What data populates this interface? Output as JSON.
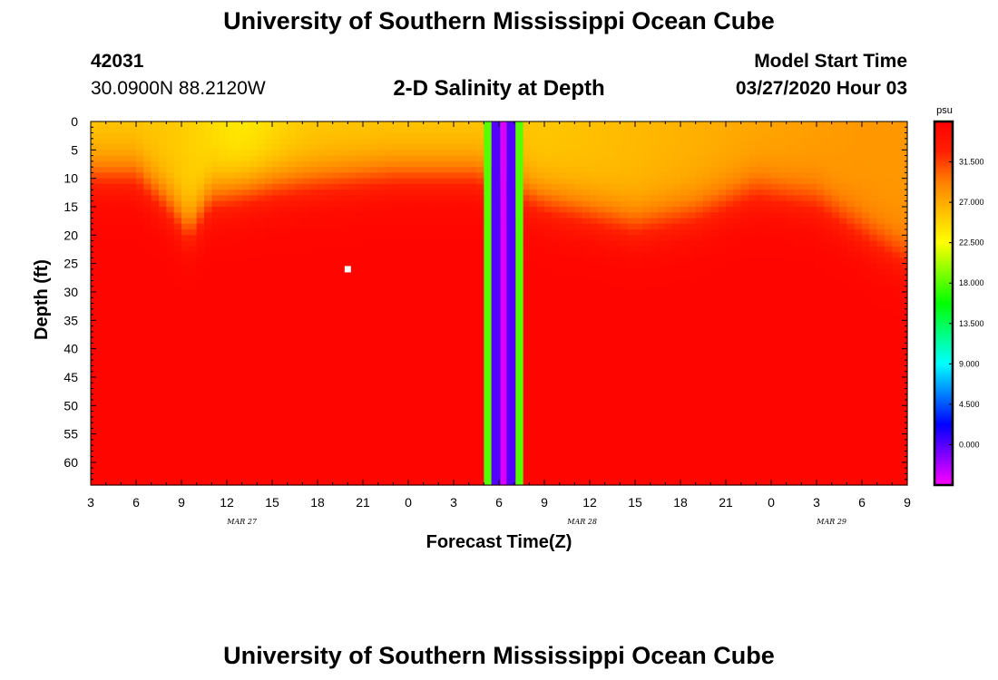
{
  "header": {
    "title": "University of Southern Mississippi Ocean Cube",
    "station_id": "42031",
    "station_coords": "30.0900N 88.2120W",
    "plot_title": "2-D Salinity at Depth",
    "model_start_label": "Model Start Time",
    "model_start_value": "03/27/2020 Hour 03"
  },
  "footer": {
    "title": "University of Southern Mississippi Ocean Cube"
  },
  "chart_data": {
    "type": "heatmap",
    "title": "2-D Salinity at Depth",
    "xlabel": "Forecast Time(Z)",
    "ylabel": "Depth (ft)",
    "x_range_hours": [
      0,
      54
    ],
    "x_ticks": [
      {
        "hour": 0,
        "label": "3"
      },
      {
        "hour": 3,
        "label": "6"
      },
      {
        "hour": 6,
        "label": "9"
      },
      {
        "hour": 9,
        "label": "12"
      },
      {
        "hour": 12,
        "label": "15"
      },
      {
        "hour": 15,
        "label": "18"
      },
      {
        "hour": 18,
        "label": "21"
      },
      {
        "hour": 21,
        "label": "0"
      },
      {
        "hour": 24,
        "label": "3"
      },
      {
        "hour": 27,
        "label": "6"
      },
      {
        "hour": 30,
        "label": "9"
      },
      {
        "hour": 33,
        "label": "12"
      },
      {
        "hour": 36,
        "label": "15"
      },
      {
        "hour": 39,
        "label": "18"
      },
      {
        "hour": 42,
        "label": "21"
      },
      {
        "hour": 45,
        "label": "0"
      },
      {
        "hour": 48,
        "label": "3"
      },
      {
        "hour": 51,
        "label": "6"
      },
      {
        "hour": 54,
        "label": "9"
      }
    ],
    "date_labels": [
      {
        "hour": 10,
        "label": "MAR 27"
      },
      {
        "hour": 32.5,
        "label": "MAR 28"
      },
      {
        "hour": 49,
        "label": "MAR 29"
      }
    ],
    "y_range_ft": [
      0,
      64
    ],
    "y_ticks": [
      0,
      5,
      10,
      15,
      20,
      25,
      30,
      35,
      40,
      45,
      50,
      55,
      60
    ],
    "colorbar": {
      "unit": "psu",
      "range": [
        -4.5,
        36
      ],
      "ticks": [
        0,
        4.5,
        9,
        13.5,
        18,
        22.5,
        27,
        31.5
      ],
      "tick_labels": [
        "0.000",
        "4.500",
        "9.000",
        "13.500",
        "18.000",
        "22.500",
        "27.000",
        "31.500"
      ],
      "colors": [
        "#ff00ff",
        "#8000ff",
        "#0000ff",
        "#0080ff",
        "#00ffff",
        "#00ff80",
        "#00ff00",
        "#80ff00",
        "#ffff00",
        "#ffc000",
        "#ff8000",
        "#ff2000",
        "#ff0000"
      ]
    },
    "field_description": {
      "surface_salinity_psu": 25.5,
      "deep_salinity_psu": 35.5,
      "halocline_depth_ft_by_hour": [
        {
          "hour": 0,
          "depth": 9
        },
        {
          "hour": 3,
          "depth": 9
        },
        {
          "hour": 5,
          "depth": 14
        },
        {
          "hour": 6.5,
          "depth": 19
        },
        {
          "hour": 8,
          "depth": 13
        },
        {
          "hour": 12,
          "depth": 11
        },
        {
          "hour": 16,
          "depth": 10
        },
        {
          "hour": 20,
          "depth": 9
        },
        {
          "hour": 25.5,
          "depth": 9
        },
        {
          "hour": 30,
          "depth": 14
        },
        {
          "hour": 36,
          "depth": 18
        },
        {
          "hour": 40,
          "depth": 16
        },
        {
          "hour": 44,
          "depth": 12
        },
        {
          "hour": 48,
          "depth": 14
        },
        {
          "hour": 52,
          "depth": 21
        },
        {
          "hour": 54,
          "depth": 24
        }
      ],
      "surface_minimum_hour": 10,
      "gap_bands": [
        {
          "hour_start": 26.0,
          "hour_end": 26.5,
          "value": 18.0
        },
        {
          "hour_start": 26.5,
          "hour_end": 27.1,
          "value": 0.0
        },
        {
          "hour_start": 27.1,
          "hour_end": 27.5,
          "value": -3.5
        },
        {
          "hour_start": 27.5,
          "hour_end": 28.1,
          "value": 0.0
        },
        {
          "hour_start": 28.1,
          "hour_end": 28.6,
          "value": 18.0
        }
      ],
      "marker": {
        "hour": 17,
        "depth": 26,
        "color": "#ffffff"
      }
    }
  }
}
